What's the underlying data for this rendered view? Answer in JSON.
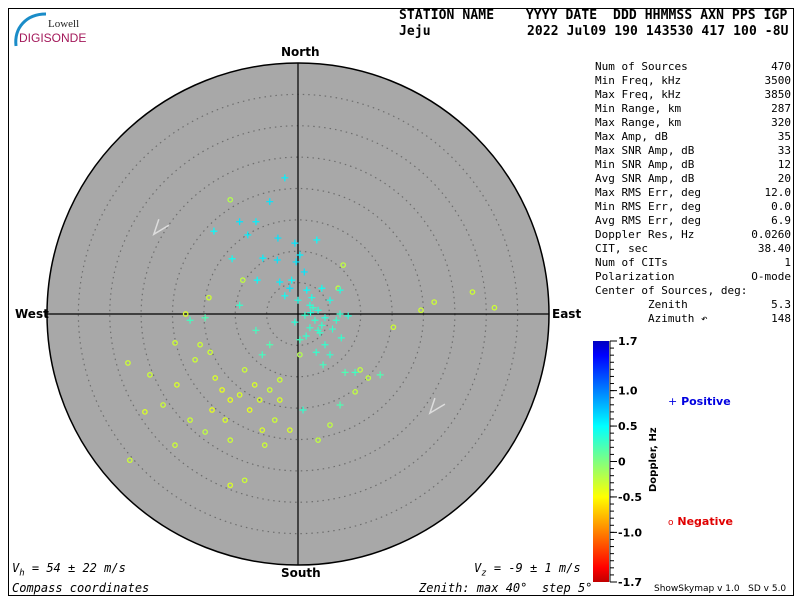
{
  "logo": {
    "line1": "Lowell",
    "line2": "DIGISONDE"
  },
  "header": {
    "labels": "STATION NAME    YYYY DATE  DDD HHMMSS AXN PPS IGP",
    "station": "Jeju",
    "values": "2022 Jul09 190 143530 417 100 -8U"
  },
  "stats": [
    {
      "label": "Num of Sources",
      "value": "470"
    },
    {
      "label": "Min Freq, kHz",
      "value": "3500"
    },
    {
      "label": "Max Freq, kHz",
      "value": "3850"
    },
    {
      "label": "Min Range, km",
      "value": "287"
    },
    {
      "label": "Max Range, km",
      "value": "320"
    },
    {
      "label": "Max Amp, dB",
      "value": "35"
    },
    {
      "label": "Max SNR Amp, dB",
      "value": "33"
    },
    {
      "label": "Min SNR Amp, dB",
      "value": "12"
    },
    {
      "label": "Avg SNR Amp, dB",
      "value": "20"
    },
    {
      "label": "Max RMS Err, deg",
      "value": "12.0"
    },
    {
      "label": "Min RMS Err, deg",
      "value": "0.0"
    },
    {
      "label": "Avg RMS Err, deg",
      "value": "6.9"
    },
    {
      "label": "Doppler Res, Hz",
      "value": "0.0260"
    },
    {
      "label": "CIT, sec",
      "value": "38.40"
    },
    {
      "label": "Num of CITs",
      "value": "1"
    },
    {
      "label": "Polarization",
      "value": "O-mode"
    },
    {
      "label": "Center of Sources, deg:",
      "value": ""
    },
    {
      "label": "        Zenith",
      "value": "5.3"
    },
    {
      "label": "        Azimuth ↶",
      "value": "148"
    }
  ],
  "footer": {
    "vh": "V",
    "vh_sub": "h",
    "vh_text": " = 54 ± 22 m/s",
    "vz": "V",
    "vz_sub": "z",
    "vz_text": " = -9 ± 1 m/s",
    "coords": "Compass coordinates",
    "zenith": "Zenith: max 40°  step 5°",
    "version": "ShowSkymap v 1.0   SD v 5.0"
  },
  "colors": {
    "plot_bg": "#a8a8a8",
    "ring": "#6e6e6e",
    "positive_legend": "#0000e0",
    "negative_legend": "#e00000",
    "logo_text": "#a3185a",
    "logo_arc": "#1a8cc8"
  },
  "chart_data": {
    "type": "scatter",
    "projection": "polar skymap, compass coordinates",
    "compass_labels": {
      "north": "North",
      "south": "South",
      "west": "West",
      "east": "East"
    },
    "zenith_max_deg": 40,
    "zenith_step_deg": 5,
    "point_format": [
      "east_deg",
      "north_deg",
      "doppler_hz"
    ],
    "colorbar": {
      "label": "Doppler, Hz",
      "range": [
        -1.7,
        1.7
      ],
      "tick_labels": [
        "1.7",
        "1.0",
        "0.5",
        "0",
        "-0.5",
        "-1.0",
        "-1.7"
      ],
      "tick_values": [
        1.7,
        1.0,
        0.5,
        0,
        -0.5,
        -1.0,
        -1.7
      ],
      "colormap": [
        [
          -1.7,
          "#c00000"
        ],
        [
          -1.5,
          "#ff0000"
        ],
        [
          -1.0,
          "#ff8000"
        ],
        [
          -0.5,
          "#ffff00"
        ],
        [
          0,
          "#80ff80"
        ],
        [
          0.5,
          "#00ffff"
        ],
        [
          1.0,
          "#0080ff"
        ],
        [
          1.5,
          "#0000ff"
        ],
        [
          1.7,
          "#0000c0"
        ]
      ]
    },
    "legend": {
      "positive": "Positive",
      "negative": "Negative",
      "positive_marker": "cross",
      "negative_marker": "circle"
    },
    "velocity_markers": [
      [
        -22.5,
        13.5
      ],
      [
        21.5,
        -15.0
      ]
    ],
    "positive_points": [
      [
        -2.1,
        21.7,
        0.55
      ],
      [
        -4.5,
        17.9,
        0.6
      ],
      [
        -9.3,
        14.7,
        0.6
      ],
      [
        -6.7,
        14.7,
        0.55
      ],
      [
        -13.4,
        13.2,
        0.5
      ],
      [
        -8.0,
        12.6,
        0.55
      ],
      [
        -3.2,
        12.1,
        0.6
      ],
      [
        -0.5,
        11.3,
        0.6
      ],
      [
        3.0,
        11.8,
        0.5
      ],
      [
        -10.5,
        8.8,
        0.45
      ],
      [
        -5.6,
        8.9,
        0.55
      ],
      [
        -3.3,
        8.6,
        0.6
      ],
      [
        -0.3,
        8.3,
        0.6
      ],
      [
        0.3,
        9.4,
        0.55
      ],
      [
        1.0,
        6.7,
        0.6
      ],
      [
        -6.5,
        5.4,
        0.5
      ],
      [
        -2.9,
        5.1,
        0.55
      ],
      [
        -1.3,
        4.1,
        0.6
      ],
      [
        1.4,
        3.8,
        0.5
      ],
      [
        3.8,
        4.1,
        0.45
      ],
      [
        6.7,
        3.8,
        0.4
      ],
      [
        5.1,
        2.2,
        0.4
      ],
      [
        1.9,
        1.4,
        0.35
      ],
      [
        3.2,
        0.6,
        0.35
      ],
      [
        1.1,
        -0.2,
        0.3
      ],
      [
        2.7,
        -1.0,
        0.3
      ],
      [
        4.3,
        -0.6,
        0.35
      ],
      [
        1.9,
        -2.2,
        0.3
      ],
      [
        3.5,
        -3.0,
        0.3
      ],
      [
        0.3,
        -4.1,
        0.25
      ],
      [
        6.1,
        -1.0,
        0.3
      ],
      [
        6.7,
        0.0,
        0.3
      ],
      [
        -6.7,
        -2.6,
        0.25
      ],
      [
        -4.5,
        -4.9,
        0.2
      ],
      [
        -5.7,
        -6.5,
        0.25
      ],
      [
        2.9,
        -6.1,
        0.3
      ],
      [
        4.0,
        -8.1,
        0.25
      ],
      [
        7.5,
        -9.3,
        0.2
      ],
      [
        5.1,
        -6.5,
        0.3
      ],
      [
        -0.5,
        -1.3,
        0.35
      ],
      [
        0.0,
        2.2,
        0.4
      ],
      [
        2.2,
        2.6,
        0.4
      ],
      [
        3.2,
        -2.6,
        0.3
      ],
      [
        4.3,
        -4.9,
        0.3
      ],
      [
        -9.3,
        1.4,
        0.3
      ],
      [
        -14.8,
        -0.6,
        0.2
      ],
      [
        -17.2,
        -1.0,
        0.25
      ],
      [
        6.9,
        -3.8,
        0.3
      ],
      [
        8.0,
        -0.3,
        0.35
      ],
      [
        13.1,
        -9.7,
        0.2
      ],
      [
        9.1,
        -9.3,
        0.25
      ],
      [
        6.7,
        -14.5,
        0.2
      ],
      [
        0.8,
        -15.3,
        0.3
      ],
      [
        -2.1,
        2.9,
        0.45
      ],
      [
        -1.0,
        5.4,
        0.5
      ],
      [
        2.4,
        1.0,
        0.3
      ],
      [
        3.8,
        -1.8,
        0.3
      ],
      [
        1.3,
        -3.5,
        0.3
      ],
      [
        5.5,
        -2.4,
        0.3
      ],
      [
        2.0,
        0.2,
        0.35
      ]
    ],
    "negative_points": [
      [
        -10.8,
        18.2,
        -0.2
      ],
      [
        -8.8,
        5.4,
        -0.25
      ],
      [
        -14.2,
        2.6,
        -0.3
      ],
      [
        -17.9,
        0.0,
        -0.35
      ],
      [
        -19.6,
        -4.6,
        -0.3
      ],
      [
        -27.1,
        -7.8,
        -0.3
      ],
      [
        -24.4,
        -15.6,
        -0.35
      ],
      [
        -21.5,
        -14.5,
        -0.3
      ],
      [
        -19.3,
        -11.3,
        -0.35
      ],
      [
        -15.6,
        -4.9,
        -0.3
      ],
      [
        -14.0,
        -6.1,
        -0.3
      ],
      [
        -13.2,
        -10.2,
        -0.35
      ],
      [
        -12.1,
        -12.1,
        -0.4
      ],
      [
        -10.8,
        -13.7,
        -0.4
      ],
      [
        -9.3,
        -12.9,
        -0.35
      ],
      [
        -13.7,
        -15.3,
        -0.4
      ],
      [
        -11.6,
        -16.9,
        -0.35
      ],
      [
        -7.7,
        -15.3,
        -0.4
      ],
      [
        -6.1,
        -13.7,
        -0.35
      ],
      [
        -4.5,
        -12.1,
        -0.3
      ],
      [
        -2.9,
        -10.5,
        -0.3
      ],
      [
        -8.5,
        -8.9,
        -0.3
      ],
      [
        -6.9,
        -11.3,
        -0.35
      ],
      [
        -17.2,
        -16.9,
        -0.3
      ],
      [
        -14.8,
        -18.8,
        -0.25
      ],
      [
        -19.6,
        -20.9,
        -0.3
      ],
      [
        -26.8,
        -23.3,
        -0.3
      ],
      [
        -10.8,
        -27.3,
        -0.35
      ],
      [
        -8.5,
        -26.5,
        -0.3
      ],
      [
        -5.7,
        -18.5,
        -0.35
      ],
      [
        -3.7,
        -16.9,
        -0.3
      ],
      [
        -1.3,
        -18.5,
        -0.35
      ],
      [
        5.1,
        -17.7,
        -0.25
      ],
      [
        9.1,
        -12.4,
        -0.25
      ],
      [
        11.2,
        -10.2,
        -0.25
      ],
      [
        15.2,
        -2.1,
        -0.3
      ],
      [
        19.6,
        0.6,
        -0.3
      ],
      [
        21.7,
        1.9,
        -0.3
      ],
      [
        27.8,
        3.5,
        -0.3
      ],
      [
        31.3,
        1.0,
        -0.3
      ],
      [
        7.2,
        7.8,
        -0.25
      ],
      [
        6.4,
        4.1,
        -0.25
      ],
      [
        9.9,
        -8.9,
        -0.25
      ],
      [
        0.3,
        -6.5,
        -0.2
      ],
      [
        -2.9,
        -13.7,
        -0.35
      ],
      [
        -10.8,
        -20.1,
        -0.3
      ],
      [
        -23.6,
        -9.7,
        -0.3
      ],
      [
        -16.4,
        -7.3,
        -0.3
      ],
      [
        -5.3,
        -20.9,
        -0.3
      ],
      [
        3.2,
        -20.1,
        -0.25
      ]
    ]
  }
}
